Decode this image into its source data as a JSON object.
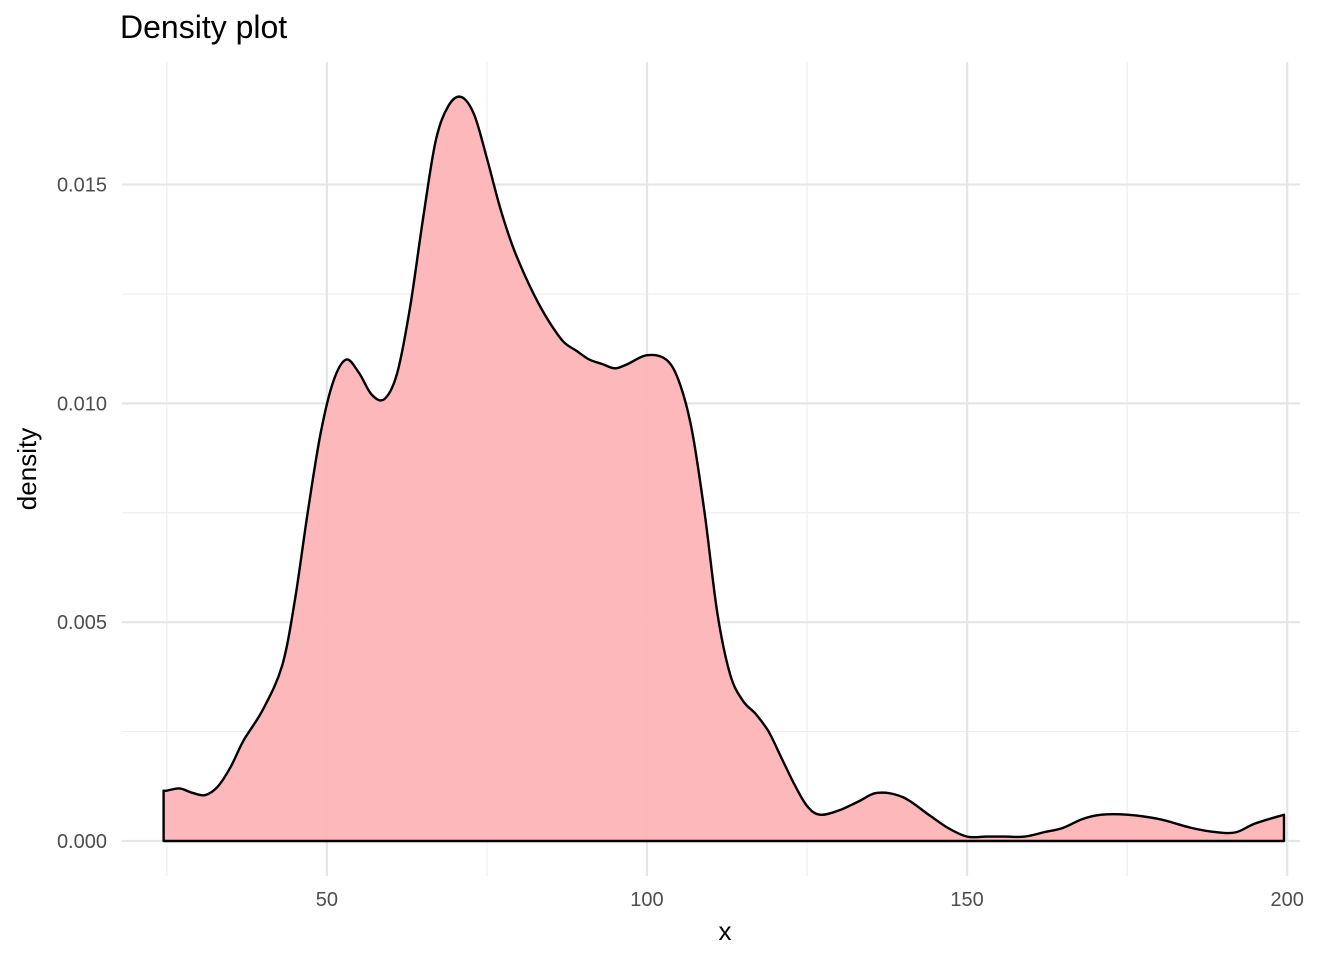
{
  "chart_data": {
    "type": "area",
    "title": "Density plot",
    "xlabel": "x",
    "ylabel": "density",
    "xlim": [
      18,
      202
    ],
    "ylim": [
      -0.0008,
      0.0178
    ],
    "x_ticks": [
      50,
      100,
      150,
      200
    ],
    "x_tick_labels": [
      "50",
      "100",
      "150",
      "200"
    ],
    "y_ticks": [
      0.0,
      0.005,
      0.01,
      0.015
    ],
    "y_tick_labels": [
      "0.000",
      "0.005",
      "0.010",
      "0.015"
    ],
    "x_minor_ticks": [
      25,
      75,
      125,
      175
    ],
    "y_minor_ticks": [
      0.0025,
      0.0075,
      0.0125
    ],
    "grid": true,
    "legend": "none",
    "fill_color": "#fdb4b8",
    "line_color": "#000000",
    "series": [
      {
        "x": [
          24.5,
          25,
          27,
          29,
          31,
          33,
          35,
          37,
          40,
          43,
          45,
          47,
          49,
          51,
          53,
          55,
          57,
          59,
          61,
          63,
          65,
          67,
          69,
          71,
          73,
          75,
          77,
          79,
          81,
          83,
          85,
          87,
          89,
          91,
          93,
          95,
          97,
          100,
          103,
          105,
          107,
          109,
          111,
          113,
          115,
          117,
          119,
          121,
          123,
          125,
          127,
          130,
          133,
          136,
          140,
          144,
          147,
          150,
          153,
          156,
          159,
          162,
          165,
          168,
          171,
          175,
          180,
          185,
          189,
          192,
          195,
          199.5
        ],
        "y": [
          0.00115,
          0.00115,
          0.0012,
          0.0011,
          0.00105,
          0.00125,
          0.0017,
          0.0023,
          0.003,
          0.004,
          0.0055,
          0.0075,
          0.0093,
          0.0105,
          0.011,
          0.0107,
          0.0102,
          0.0101,
          0.0107,
          0.0122,
          0.0142,
          0.016,
          0.0168,
          0.017,
          0.0166,
          0.0156,
          0.0145,
          0.0136,
          0.0129,
          0.0123,
          0.0118,
          0.0114,
          0.0112,
          0.011,
          0.0109,
          0.0108,
          0.0109,
          0.0111,
          0.011,
          0.0105,
          0.0094,
          0.0075,
          0.0052,
          0.0038,
          0.0032,
          0.0029,
          0.0025,
          0.0019,
          0.0013,
          0.0008,
          0.0006,
          0.0007,
          0.0009,
          0.0011,
          0.001,
          0.0006,
          0.0003,
          0.0001,
          0.0001,
          0.0001,
          0.0001,
          0.0002,
          0.0003,
          0.0005,
          0.0006,
          0.0006,
          0.0005,
          0.0003,
          0.0002,
          0.0002,
          0.0004,
          0.0006
        ]
      }
    ]
  }
}
